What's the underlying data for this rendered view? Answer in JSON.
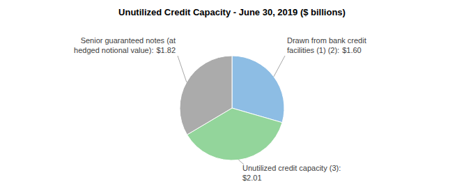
{
  "chart_data": {
    "type": "pie",
    "title": "Unutilized Credit Capacity - June 30, 2019 ($ billions)",
    "categories": [
      "Drawn from bank credit facilities (1) (2):",
      "Unutilized credit capacity (3):",
      "Senior guaranteed notes (at hedged notional value):"
    ],
    "values": [
      1.6,
      2.01,
      1.82
    ],
    "value_labels": [
      "$1.60",
      "$2.01",
      "$1.82"
    ],
    "colors": [
      "#8dbde4",
      "#93d59b",
      "#ababab"
    ],
    "data_labels": true
  }
}
